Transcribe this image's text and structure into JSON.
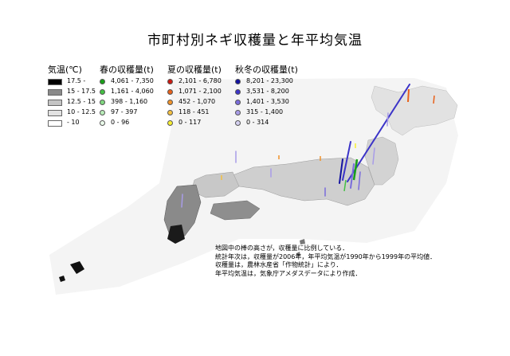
{
  "title": "市町村別ネギ収穫量と年平均気温",
  "legend": {
    "temperature": {
      "heading": "気温(℃)",
      "items": [
        {
          "label": "17.5 -",
          "color": "#000000"
        },
        {
          "label": "15 - 17.5",
          "color": "#8a8a8a"
        },
        {
          "label": "12.5 - 15",
          "color": "#c4c4c4"
        },
        {
          "label": "10 - 12.5",
          "color": "#e2e2e2"
        },
        {
          "label": "- 10",
          "color": "#ffffff"
        }
      ]
    },
    "spring": {
      "heading": "春の収穫量(t)",
      "items": [
        {
          "label": "4,061 - 7,350",
          "color": "#19a019"
        },
        {
          "label": "1,161 - 4,060",
          "color": "#44c044"
        },
        {
          "label": "398 - 1,160",
          "color": "#80d880"
        },
        {
          "label": "97 - 397",
          "color": "#b8ecb8"
        },
        {
          "label": "0 - 96",
          "color": "#eafaea"
        }
      ]
    },
    "summer": {
      "heading": "夏の収穫量(t)",
      "items": [
        {
          "label": "2,101 - 6,780",
          "color": "#cc1a10"
        },
        {
          "label": "1,071 - 2,100",
          "color": "#e8601a"
        },
        {
          "label": "452 - 1,070",
          "color": "#f0922a"
        },
        {
          "label": "118 - 451",
          "color": "#f4c040"
        },
        {
          "label": "0 - 117",
          "color": "#f8ee30"
        }
      ]
    },
    "autumn_winter": {
      "heading": "秋冬の収穫量(t)",
      "items": [
        {
          "label": "8,201 - 23,300",
          "color": "#1212a0"
        },
        {
          "label": "3,531 - 8,200",
          "color": "#3c34c8"
        },
        {
          "label": "1,401 - 3,530",
          "color": "#7a6cdc"
        },
        {
          "label": "315 - 1,400",
          "color": "#a89ce8"
        },
        {
          "label": "0 - 314",
          "color": "#d4d0f0"
        }
      ]
    }
  },
  "notes": [
    "地図中の棒の高さが，収穫量に比例している．",
    "統計年次は，収穫量が2006年，年平均気温が1990年から1999年の平均値．",
    "収穫量は，農林水産省「作物統計」により．",
    "年平均気温は，気象庁アメダスデータにより作成．"
  ]
}
